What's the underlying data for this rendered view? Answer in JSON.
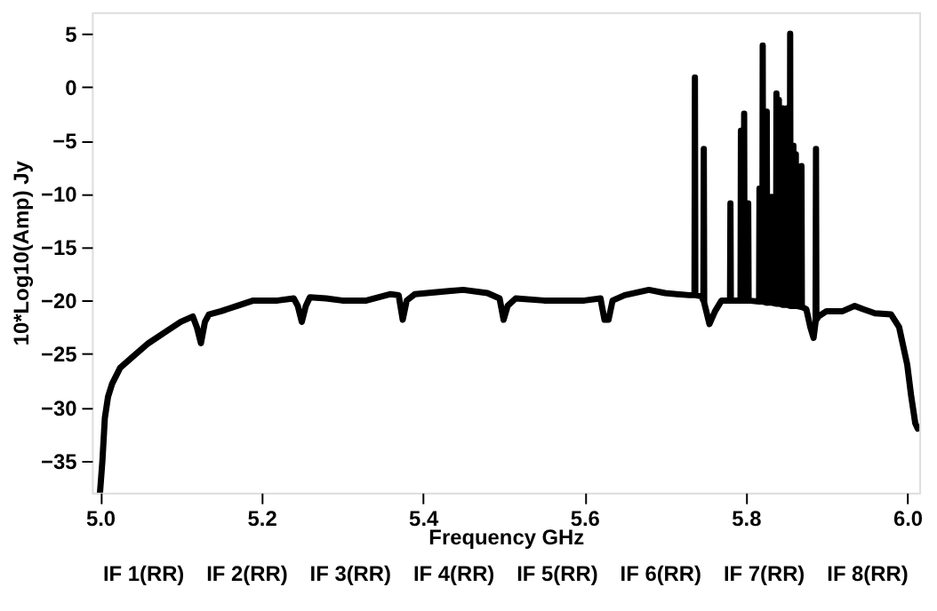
{
  "chart_data": {
    "type": "line",
    "xlabel": "Frequency GHz",
    "ylabel": "10*Log10(Amp) Jy",
    "xlim": [
      4.99,
      6.015
    ],
    "ylim": [
      -38,
      7
    ],
    "xticks": [
      {
        "value": 5,
        "label": "5.0"
      },
      5.2,
      5.4,
      5.6,
      5.8,
      {
        "value": 6,
        "label": "6.0"
      }
    ],
    "yticks": [
      -35,
      -30,
      -25,
      -20,
      -15,
      -10,
      -5,
      0,
      5
    ],
    "grid": false,
    "legend": false,
    "line_style": "solid",
    "annotations": [
      "IF 1(RR)",
      "IF 2(RR)",
      "IF 3(RR)",
      "IF 4(RR)",
      "IF 5(RR)",
      "IF 6(RR)",
      "IF 7(RR)",
      "IF 8(RR)"
    ],
    "x": [
      5.0,
      5.003,
      5.006,
      5.01,
      5.015,
      5.025,
      5.04,
      5.06,
      5.08,
      5.1,
      5.115,
      5.12,
      5.125,
      5.13,
      5.135,
      5.15,
      5.17,
      5.19,
      5.22,
      5.24,
      5.245,
      5.25,
      5.255,
      5.26,
      5.28,
      5.3,
      5.33,
      5.36,
      5.37,
      5.375,
      5.38,
      5.39,
      5.42,
      5.45,
      5.48,
      5.495,
      5.5,
      5.505,
      5.515,
      5.55,
      5.6,
      5.62,
      5.625,
      5.63,
      5.635,
      5.65,
      5.68,
      5.7,
      5.73,
      5.7365,
      5.737,
      5.7375,
      5.745,
      5.7475,
      5.748,
      5.7485,
      5.755,
      5.762,
      5.77,
      5.7805,
      5.781,
      5.7815,
      5.7935,
      5.794,
      5.7945,
      5.7975,
      5.798,
      5.7985,
      5.8025,
      5.803,
      5.8035,
      5.8165,
      5.817,
      5.8175,
      5.8205,
      5.821,
      5.8215,
      5.8255,
      5.826,
      5.8265,
      5.8315,
      5.832,
      5.8325,
      5.8375,
      5.838,
      5.8385,
      5.8405,
      5.841,
      5.8415,
      5.8455,
      5.846,
      5.8465,
      5.8505,
      5.851,
      5.8515,
      5.8545,
      5.855,
      5.8555,
      5.8585,
      5.859,
      5.8595,
      5.8615,
      5.862,
      5.8625,
      5.8685,
      5.869,
      5.8695,
      5.875,
      5.88,
      5.884,
      5.8865,
      5.887,
      5.8875,
      5.89,
      5.9,
      5.92,
      5.935,
      5.945,
      5.96,
      5.98,
      5.99,
      6.0,
      6.005,
      6.01,
      6.013
    ],
    "series": [
      {
        "color": "#000000",
        "values": [
          -38,
          -35,
          -31,
          -29,
          -27.8,
          -26.3,
          -25.3,
          -24,
          -23,
          -22,
          -21.5,
          -22.5,
          -24,
          -22,
          -21.3,
          -21,
          -20.5,
          -20,
          -20,
          -19.8,
          -20.5,
          -22,
          -20.5,
          -19.7,
          -19.8,
          -20,
          -20,
          -19.4,
          -19.5,
          -21.8,
          -20,
          -19.4,
          -19.2,
          -19,
          -19.3,
          -19.8,
          -21.8,
          -20.5,
          -19.8,
          -20,
          -20,
          -19.8,
          -21.8,
          -21.8,
          -20,
          -19.5,
          -19,
          -19.3,
          -19.5,
          -19.5,
          0.9,
          -19.5,
          -19.6,
          -20,
          -5.8,
          -20.2,
          -22.2,
          -21,
          -20,
          -20,
          -10.9,
          -20,
          -20,
          -4.1,
          -20,
          -20,
          -2.5,
          -20,
          -20,
          -10.9,
          -20,
          -20.1,
          -9.5,
          -20.1,
          -20.1,
          3.9,
          -20.1,
          -20.2,
          -2.3,
          -20.2,
          -20.2,
          -10.3,
          -20.2,
          -20.3,
          -0.6,
          -20.3,
          -20.3,
          -1.2,
          -20.3,
          -20.4,
          -2,
          -20.4,
          -20.4,
          -2,
          -20.4,
          -20.5,
          5,
          -20.5,
          -20.5,
          -5.5,
          -20.5,
          -20.5,
          -6.3,
          -20.5,
          -20.6,
          -7.4,
          -20.6,
          -20.8,
          -22.5,
          -23.5,
          -22,
          -5.8,
          -21.8,
          -21.5,
          -21,
          -21,
          -20.5,
          -20.8,
          -21.2,
          -21.3,
          -22.5,
          -26,
          -29,
          -31.5,
          -32
        ]
      }
    ]
  }
}
